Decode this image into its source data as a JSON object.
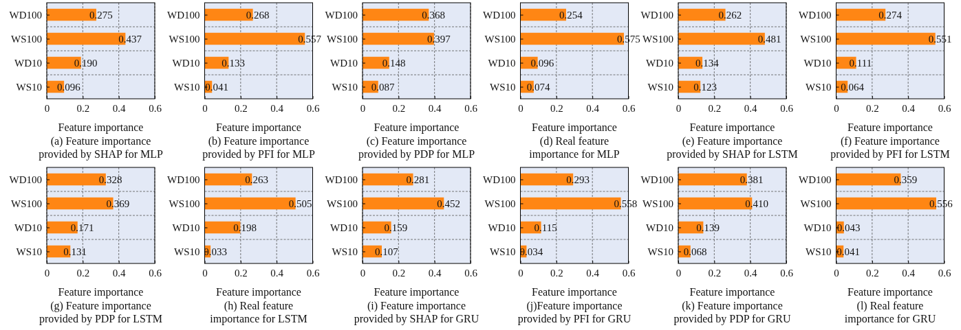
{
  "chart_data": [
    {
      "type": "bar",
      "orientation": "horizontal",
      "title": "(a) Feature importance provided by SHAP for MLP",
      "xlabel": "Feature importance",
      "categories": [
        "WD100",
        "WS100",
        "WD10",
        "WS10"
      ],
      "values": [
        0.275,
        0.437,
        0.19,
        0.096
      ],
      "value_labels": [
        "0.275",
        "0.437",
        "0.190",
        "0.096"
      ],
      "color": "#ff8614",
      "xlim": [
        0,
        0.6
      ],
      "xticks": [
        0,
        0.2,
        0.4,
        0.6
      ],
      "grid": true
    },
    {
      "type": "bar",
      "orientation": "horizontal",
      "title": "(b) Feature importance provided by PFI for MLP",
      "xlabel": "Feature importance",
      "categories": [
        "WD100",
        "WS100",
        "WD10",
        "WS10"
      ],
      "values": [
        0.268,
        0.557,
        0.133,
        0.041
      ],
      "value_labels": [
        "0.268",
        "0.557",
        "0.133",
        "0.041"
      ],
      "color": "#ff8614",
      "xlim": [
        0,
        0.6
      ],
      "xticks": [
        0,
        0.2,
        0.4,
        0.6
      ],
      "grid": true
    },
    {
      "type": "bar",
      "orientation": "horizontal",
      "title": "(c) Feature importance provided by PDP for MLP",
      "xlabel": "Feature importance",
      "categories": [
        "WD100",
        "WS100",
        "WD10",
        "WS10"
      ],
      "values": [
        0.368,
        0.397,
        0.148,
        0.087
      ],
      "value_labels": [
        "0.368",
        "0.397",
        "0.148",
        "0.087"
      ],
      "color": "#ff8614",
      "xlim": [
        0,
        0.6
      ],
      "xticks": [
        0,
        0.2,
        0.4,
        0.6
      ],
      "grid": true
    },
    {
      "type": "bar",
      "orientation": "horizontal",
      "title": "(d) Real feature importance for MLP",
      "xlabel": "Feature importance",
      "categories": [
        "WD100",
        "WS100",
        "WD10",
        "WS10"
      ],
      "values": [
        0.254,
        0.575,
        0.096,
        0.074
      ],
      "value_labels": [
        "0.254",
        "0.575",
        "0.096",
        "0.074"
      ],
      "color": "#ff8614",
      "xlim": [
        0,
        0.6
      ],
      "xticks": [
        0,
        0.2,
        0.4,
        0.6
      ],
      "grid": true
    },
    {
      "type": "bar",
      "orientation": "horizontal",
      "title": "(e) Feature importance provided by SHAP for LSTM",
      "xlabel": "Feature importance",
      "categories": [
        "WD100",
        "WS100",
        "WD10",
        "WS10"
      ],
      "values": [
        0.262,
        0.481,
        0.134,
        0.123
      ],
      "value_labels": [
        "0.262",
        "0.481",
        "0.134",
        "0.123"
      ],
      "color": "#ff8614",
      "xlim": [
        0,
        0.6
      ],
      "xticks": [
        0,
        0.2,
        0.4,
        0.6
      ],
      "grid": true
    },
    {
      "type": "bar",
      "orientation": "horizontal",
      "title": "(f) Feature importance provided by PFI for LSTM",
      "xlabel": "Feature importance",
      "categories": [
        "WD100",
        "WS100",
        "WD10",
        "WS10"
      ],
      "values": [
        0.274,
        0.551,
        0.111,
        0.064
      ],
      "value_labels": [
        "0.274",
        "0.551",
        "0.111",
        "0.064"
      ],
      "color": "#ff8614",
      "xlim": [
        0,
        0.6
      ],
      "xticks": [
        0,
        0.2,
        0.4,
        0.6
      ],
      "grid": true
    },
    {
      "type": "bar",
      "orientation": "horizontal",
      "title": "(g) Feature importance provided by PDP for LSTM",
      "xlabel": "Feature importance",
      "categories": [
        "WD100",
        "WS100",
        "WD10",
        "WS10"
      ],
      "values": [
        0.328,
        0.369,
        0.171,
        0.131
      ],
      "value_labels": [
        "0.328",
        "0.369",
        "0.171",
        "0.131"
      ],
      "color": "#ff8614",
      "xlim": [
        0,
        0.6
      ],
      "xticks": [
        0,
        0.2,
        0.4,
        0.6
      ],
      "grid": true
    },
    {
      "type": "bar",
      "orientation": "horizontal",
      "title": "(h) Real feature importance for LSTM",
      "xlabel": "Feature importance",
      "categories": [
        "WD100",
        "WS100",
        "WD10",
        "WS10"
      ],
      "values": [
        0.263,
        0.505,
        0.198,
        0.033
      ],
      "value_labels": [
        "0.263",
        "0.505",
        "0.198",
        "0.033"
      ],
      "color": "#ff8614",
      "xlim": [
        0,
        0.6
      ],
      "xticks": [
        0,
        0.2,
        0.4,
        0.6
      ],
      "grid": true
    },
    {
      "type": "bar",
      "orientation": "horizontal",
      "title": "(i) Feature importance provided by SHAP for GRU",
      "xlabel": "Feature importance",
      "categories": [
        "WD100",
        "WS100",
        "WD10",
        "WS10"
      ],
      "values": [
        0.281,
        0.452,
        0.159,
        0.107
      ],
      "value_labels": [
        "0.281",
        "0.452",
        "0.159",
        "0.107"
      ],
      "color": "#ff8614",
      "xlim": [
        0,
        0.6
      ],
      "xticks": [
        0,
        0.2,
        0.4,
        0.6
      ],
      "grid": true
    },
    {
      "type": "bar",
      "orientation": "horizontal",
      "title": "(j)Feature importance provided by PFI for GRU",
      "xlabel": "Feature importance",
      "categories": [
        "WD100",
        "WS100",
        "WD10",
        "WS10"
      ],
      "values": [
        0.293,
        0.558,
        0.115,
        0.034
      ],
      "value_labels": [
        "0.293",
        "0.558",
        "0.115",
        "0.034"
      ],
      "color": "#ff8614",
      "xlim": [
        0,
        0.6
      ],
      "xticks": [
        0,
        0.2,
        0.4,
        0.6
      ],
      "grid": true
    },
    {
      "type": "bar",
      "orientation": "horizontal",
      "title": "(k) Feature importance provided by PDP for GRU",
      "xlabel": "Feature importance",
      "categories": [
        "WD100",
        "WS100",
        "WD10",
        "WS10"
      ],
      "values": [
        0.381,
        0.41,
        0.139,
        0.068
      ],
      "value_labels": [
        "0.381",
        "0.410",
        "0.139",
        "0.068"
      ],
      "color": "#ff8614",
      "xlim": [
        0,
        0.6
      ],
      "xticks": [
        0,
        0.2,
        0.4,
        0.6
      ],
      "grid": true
    },
    {
      "type": "bar",
      "orientation": "horizontal",
      "title": "(l) Real feature importance for GRU",
      "xlabel": "Feature importance",
      "categories": [
        "WD100",
        "WS100",
        "WD10",
        "WS10"
      ],
      "values": [
        0.359,
        0.556,
        0.043,
        0.041
      ],
      "value_labels": [
        "0.359",
        "0.556",
        "0.043",
        "0.041"
      ],
      "color": "#ff8614",
      "xlim": [
        0,
        0.6
      ],
      "xticks": [
        0,
        0.2,
        0.4,
        0.6
      ],
      "grid": true
    }
  ]
}
